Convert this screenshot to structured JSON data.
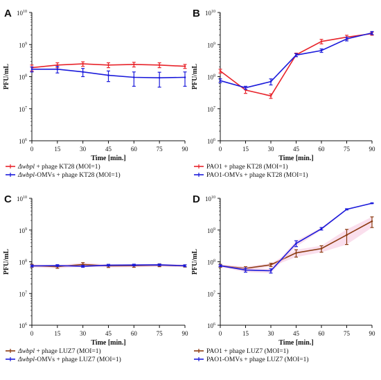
{
  "chart_data": [
    {
      "panel": "A",
      "type": "line",
      "xlabel": "Time [min.]",
      "ylabel": "PFU/mL",
      "x": [
        0,
        15,
        30,
        45,
        60,
        75,
        90
      ],
      "xticks": [
        "0",
        "15",
        "30",
        "45",
        "60",
        "75",
        "90"
      ],
      "y_scale": "log",
      "ylim": [
        1000000,
        10000000000
      ],
      "yticks": [
        {
          "base": "10",
          "exp": "6"
        },
        {
          "base": "10",
          "exp": "7"
        },
        {
          "base": "10",
          "exp": "8"
        },
        {
          "base": "10",
          "exp": "9"
        },
        {
          "base": "10",
          "exp": "10"
        }
      ],
      "shaded_error_band": false,
      "series": [
        {
          "legend_parts": [
            {
              "text": "Δwbpl",
              "italic": true
            },
            {
              "text": " + phage KT28 (MOI=1)",
              "italic": false
            }
          ],
          "color": "#e8232a",
          "values": [
            190000000,
            230000000,
            250000000,
            230000000,
            240000000,
            230000000,
            210000000
          ],
          "errors": [
            40000000,
            40000000,
            40000000,
            40000000,
            40000000,
            40000000,
            30000000
          ]
        },
        {
          "legend_parts": [
            {
              "text": "Δwbpl",
              "italic": true
            },
            {
              "text": "-OMVs + phage KT28 (MOI=1)",
              "italic": false
            }
          ],
          "color": "#1a1adb",
          "values": [
            170000000,
            170000000,
            140000000,
            110000000,
            95000000,
            92000000,
            95000000
          ],
          "errors": [
            30000000,
            40000000,
            40000000,
            40000000,
            45000000,
            45000000,
            45000000
          ]
        }
      ]
    },
    {
      "panel": "B",
      "type": "line",
      "xlabel": "Time [min.]",
      "ylabel": "PFU/mL",
      "x": [
        0,
        15,
        30,
        45,
        60,
        75,
        90
      ],
      "xticks": [
        "0",
        "15",
        "30",
        "45",
        "60",
        "75",
        "90"
      ],
      "y_scale": "log",
      "ylim": [
        1000000,
        10000000000
      ],
      "yticks": [
        {
          "base": "10",
          "exp": "6"
        },
        {
          "base": "10",
          "exp": "7"
        },
        {
          "base": "10",
          "exp": "8"
        },
        {
          "base": "10",
          "exp": "9"
        },
        {
          "base": "10",
          "exp": "10"
        }
      ],
      "shaded_error_band": false,
      "series": [
        {
          "legend_parts": [
            {
              "text": "PAO1 + phage KT28 (MOI=1)",
              "italic": false
            }
          ],
          "color": "#e8232a",
          "values": [
            150000000,
            38000000,
            25000000,
            480000000,
            1250000000,
            1700000000,
            2200000000
          ],
          "errors": [
            20000000,
            8000000,
            4000000,
            60000000,
            200000000,
            250000000,
            250000000
          ]
        },
        {
          "legend_parts": [
            {
              "text": "PAO1-OMVs + phage KT28 (MOI=1)",
              "italic": false
            }
          ],
          "color": "#1a1adb",
          "values": [
            75000000,
            45000000,
            70000000,
            470000000,
            650000000,
            1500000000,
            2300000000
          ],
          "errors": [
            10000000,
            5000000,
            15000000,
            50000000,
            80000000,
            200000000,
            250000000
          ]
        }
      ]
    },
    {
      "panel": "C",
      "type": "line",
      "xlabel": "Time [min.]",
      "ylabel": "PFU/mL",
      "x": [
        0,
        15,
        30,
        45,
        60,
        75,
        90
      ],
      "xticks": [
        "0",
        "15",
        "30",
        "45",
        "60",
        "75",
        "90"
      ],
      "y_scale": "log",
      "ylim": [
        1000000,
        10000000000
      ],
      "yticks": [
        {
          "base": "10",
          "exp": "6"
        },
        {
          "base": "10",
          "exp": "7"
        },
        {
          "base": "10",
          "exp": "8"
        },
        {
          "base": "10",
          "exp": "9"
        },
        {
          "base": "10",
          "exp": "10"
        }
      ],
      "shaded_error_band": true,
      "series": [
        {
          "legend_parts": [
            {
              "text": "Δwbpl",
              "italic": true
            },
            {
              "text": " + phage LUZ7 (MOI=1)",
              "italic": false
            }
          ],
          "color": "#8b3a10",
          "values": [
            75000000,
            70000000,
            82000000,
            74000000,
            75000000,
            78000000,
            74000000
          ],
          "errors": [
            8000000,
            8000000,
            12000000,
            8000000,
            8000000,
            8000000,
            6000000
          ]
        },
        {
          "legend_parts": [
            {
              "text": "Δwbpl",
              "italic": true
            },
            {
              "text": "-OMVs + phage LUZ7 (MOI=1)",
              "italic": false
            }
          ],
          "color": "#1a1adb",
          "values": [
            74000000,
            76000000,
            72000000,
            78000000,
            79000000,
            80000000,
            75000000
          ],
          "errors": [
            5000000,
            5000000,
            5000000,
            5000000,
            5000000,
            5000000,
            5000000
          ]
        }
      ]
    },
    {
      "panel": "D",
      "type": "line",
      "xlabel": "Time [min.]",
      "ylabel": "PFU/mL",
      "x": [
        0,
        15,
        30,
        45,
        60,
        75,
        90
      ],
      "xticks": [
        "0",
        "15",
        "30",
        "45",
        "60",
        "75",
        "90"
      ],
      "y_scale": "log",
      "ylim": [
        1000000,
        10000000000
      ],
      "yticks": [
        {
          "base": "10",
          "exp": "6"
        },
        {
          "base": "10",
          "exp": "7"
        },
        {
          "base": "10",
          "exp": "8"
        },
        {
          "base": "10",
          "exp": "9"
        },
        {
          "base": "10",
          "exp": "10"
        }
      ],
      "shaded_error_band": true,
      "series": [
        {
          "legend_parts": [
            {
              "text": "PAO1 + phage LUZ7 (MOI=1)",
              "italic": false
            }
          ],
          "color": "#8b3a10",
          "values": [
            75000000,
            62000000,
            80000000,
            190000000,
            260000000,
            700000000,
            1900000000
          ],
          "errors": [
            8000000,
            8000000,
            10000000,
            50000000,
            60000000,
            350000000,
            700000000
          ]
        },
        {
          "legend_parts": [
            {
              "text": "PAO1-OMVs + phage LUZ7 (MOI=1)",
              "italic": false
            }
          ],
          "color": "#1a1adb",
          "values": [
            75000000,
            55000000,
            52000000,
            380000000,
            1100000000,
            4500000000,
            7000000000
          ],
          "errors": [
            5000000,
            8000000,
            8000000,
            80000000,
            100000000,
            200000000,
            200000000
          ]
        }
      ]
    }
  ]
}
